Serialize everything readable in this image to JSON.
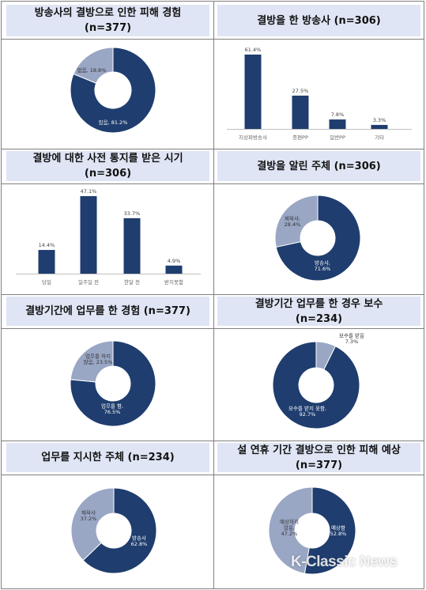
{
  "colors": {
    "primary": "#1f3d6e",
    "secondary": "#99a6c4",
    "header_bg": "#dfe5f4",
    "grid": "#7f7f7f"
  },
  "watermark": "K-Classic News",
  "panels": [
    {
      "id": "p1",
      "header": "방송사의 결방으로 인한 피해 경험\n(n=377)",
      "chart_data": {
        "type": "pie",
        "slices": [
          {
            "label": "있음",
            "value": 81.2,
            "label_text": "있음, 81.2%"
          },
          {
            "label": "없음",
            "value": 18.8,
            "label_text": "없음, 18.8%"
          }
        ]
      }
    },
    {
      "id": "p2",
      "header": "결방을 한 방송사 (n=306)",
      "chart_data": {
        "type": "bar",
        "categories": [
          "지상파방송사",
          "종편PP",
          "일반PP",
          "기타"
        ],
        "values": [
          61.4,
          27.5,
          7.8,
          3.3
        ],
        "value_labels": [
          "61.4%",
          "27.5%",
          "7.8%",
          "3.3%"
        ]
      }
    },
    {
      "id": "p3",
      "header": "결방에 대한 사전 통지를 받은 시기\n(n=306)",
      "chart_data": {
        "type": "bar",
        "categories": [
          "당일",
          "일주일 전",
          "한달 전",
          "받지못함"
        ],
        "values": [
          14.4,
          47.1,
          33.7,
          4.9
        ],
        "value_labels": [
          "14.4%",
          "47.1%",
          "33.7%",
          "4.9%"
        ]
      }
    },
    {
      "id": "p4",
      "header": "결방을 알린 주체 (n=306)",
      "chart_data": {
        "type": "pie",
        "slices": [
          {
            "label": "방송사",
            "value": 71.6,
            "label_text": "방송사,\n71.6%"
          },
          {
            "label": "제작사",
            "value": 28.4,
            "label_text": "제작사,\n28.4%"
          }
        ]
      }
    },
    {
      "id": "p5",
      "header": "결방기간에 업무를 한 경험 (n=377)",
      "chart_data": {
        "type": "pie",
        "slices": [
          {
            "label": "업무를 함",
            "value": 76.5,
            "label_text": "업무를 함,\n76.5%"
          },
          {
            "label": "업무를 하지 않음",
            "value": 23.5,
            "label_text": "업무를 하지\n않음, 23.5%"
          }
        ]
      }
    },
    {
      "id": "p6",
      "header": "결방기간 업무를 한 경우 보수\n(n=234)",
      "chart_data": {
        "type": "pie",
        "slices": [
          {
            "label": "보수를 받지 못함",
            "value": 92.7,
            "label_text": "보수를 받지 못함,\n92.7%"
          },
          {
            "label": "보수를 받음",
            "value": 7.3,
            "label_text": "보수를 받음\n7.3%"
          }
        ]
      }
    },
    {
      "id": "p7",
      "header": "업무를 지시한 주체 (n=234)",
      "chart_data": {
        "type": "pie",
        "slices": [
          {
            "label": "방송사",
            "value": 62.8,
            "label_text": "방송사\n62.8%"
          },
          {
            "label": "제작사",
            "value": 37.2,
            "label_text": "제작사\n37.2%"
          }
        ]
      }
    },
    {
      "id": "p8",
      "header": "설 연휴 기간 결방으로 인한 피해 예상\n(n=377)",
      "chart_data": {
        "type": "pie",
        "slices": [
          {
            "label": "예상함",
            "value": 52.8,
            "label_text": "예상함\n52.8%"
          },
          {
            "label": "예상하지 않음",
            "value": 47.2,
            "label_text": "예상하지\n않음,\n47.2%"
          }
        ]
      }
    }
  ]
}
